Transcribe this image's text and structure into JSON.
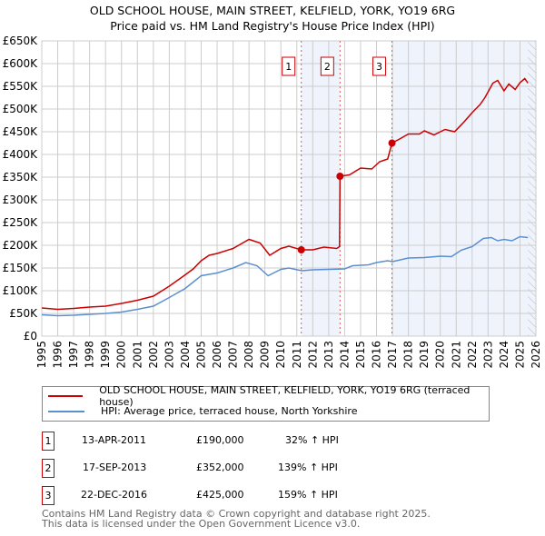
{
  "title": "OLD SCHOOL HOUSE, MAIN STREET, KELFIELD, YORK, YO19 6RG",
  "subtitle": "Price paid vs. HM Land Registry's House Price Index (HPI)",
  "chart_data": {
    "type": "line",
    "xlim": [
      1995,
      2026
    ],
    "ylim": [
      0,
      650000
    ],
    "y_ticks": [
      "£0",
      "£50K",
      "£100K",
      "£150K",
      "£200K",
      "£250K",
      "£300K",
      "£350K",
      "£400K",
      "£450K",
      "£500K",
      "£550K",
      "£600K",
      "£650K"
    ],
    "x_ticks": [
      "1995",
      "1996",
      "1997",
      "1998",
      "1999",
      "2000",
      "2001",
      "2002",
      "2003",
      "2004",
      "2005",
      "2006",
      "2007",
      "2008",
      "2009",
      "2010",
      "2011",
      "2012",
      "2013",
      "2014",
      "2015",
      "2016",
      "2017",
      "2018",
      "2019",
      "2020",
      "2021",
      "2022",
      "2023",
      "2024",
      "2025",
      "2026"
    ],
    "series": [
      {
        "name": "OLD SCHOOL HOUSE, MAIN STREET, KELFIELD, YORK, YO19 6RG (terraced house)",
        "color": "#cc0000",
        "x": [
          1995,
          1996,
          1997,
          1998,
          1999,
          2000,
          2001,
          2002,
          2003,
          2004,
          2004.5,
          2005,
          2005.5,
          2006,
          2007,
          2007.5,
          2008,
          2008.7,
          2009.3,
          2010,
          2010.5,
          2011.28,
          2012,
          2012.7,
          2013.5,
          2013.68,
          2013.71,
          2014.3,
          2015,
          2015.7,
          2016.2,
          2016.7,
          2016.97,
          2017.5,
          2018,
          2018.7,
          2019,
          2019.6,
          2020.3,
          2020.9,
          2021.5,
          2022,
          2022.5,
          2022.8,
          2023.3,
          2023.6,
          2024,
          2024.3,
          2024.7,
          2025,
          2025.3,
          2025.5
        ],
        "y": [
          62,
          59,
          61,
          64,
          66,
          72,
          79,
          88,
          110,
          135,
          148,
          166,
          178,
          182,
          193,
          203,
          213,
          205,
          178,
          193,
          198,
          190,
          190,
          196,
          193,
          197,
          352,
          355,
          370,
          368,
          384,
          390,
          425,
          435,
          445,
          445,
          452,
          443,
          455,
          450,
          472,
          492,
          510,
          525,
          557,
          563,
          540,
          555,
          543,
          558,
          567,
          557
        ]
      },
      {
        "name": "HPI: Average price, terraced house, North Yorkshire",
        "color": "#5b8fd0",
        "x": [
          1995,
          1996,
          1997,
          1998,
          1999,
          2000,
          2001,
          2002,
          2003,
          2004,
          2005,
          2006,
          2007,
          2007.8,
          2008.5,
          2009.2,
          2010,
          2010.5,
          2011.3,
          2012,
          2013,
          2014,
          2014.5,
          2015.5,
          2016,
          2016.7,
          2017,
          2018,
          2019,
          2020,
          2020.7,
          2021.3,
          2022,
          2022.7,
          2023.2,
          2023.6,
          2024,
          2024.5,
          2025,
          2025.5
        ],
        "y": [
          47,
          45,
          46,
          48,
          50,
          53,
          59,
          66,
          85,
          105,
          133,
          139,
          150,
          162,
          155,
          133,
          147,
          150,
          144,
          146,
          147,
          148,
          155,
          157,
          162,
          166,
          164,
          172,
          173,
          176,
          175,
          189,
          197,
          215,
          217,
          210,
          213,
          210,
          219,
          217
        ]
      }
    ],
    "y_unit": "thousand GBP",
    "shaded_ranges": [
      [
        2011.28,
        2013.71
      ],
      [
        2016.97,
        2026
      ]
    ],
    "hatched_from": 2025.5,
    "annotations": [
      {
        "label": "1",
        "x": 2011.28,
        "y": 190
      },
      {
        "label": "2",
        "x": 2013.71,
        "y": 352
      },
      {
        "label": "3",
        "x": 2016.97,
        "y": 425
      }
    ]
  },
  "transactions": [
    {
      "num": "1",
      "date": "13-APR-2011",
      "price": "£190,000",
      "hpi": "32% ↑ HPI"
    },
    {
      "num": "2",
      "date": "17-SEP-2013",
      "price": "£352,000",
      "hpi": "139% ↑ HPI"
    },
    {
      "num": "3",
      "date": "22-DEC-2016",
      "price": "£425,000",
      "hpi": "159% ↑ HPI"
    }
  ],
  "footer": [
    "Contains HM Land Registry data © Crown copyright and database right 2025.",
    "This data is licensed under the Open Government Licence v3.0."
  ]
}
